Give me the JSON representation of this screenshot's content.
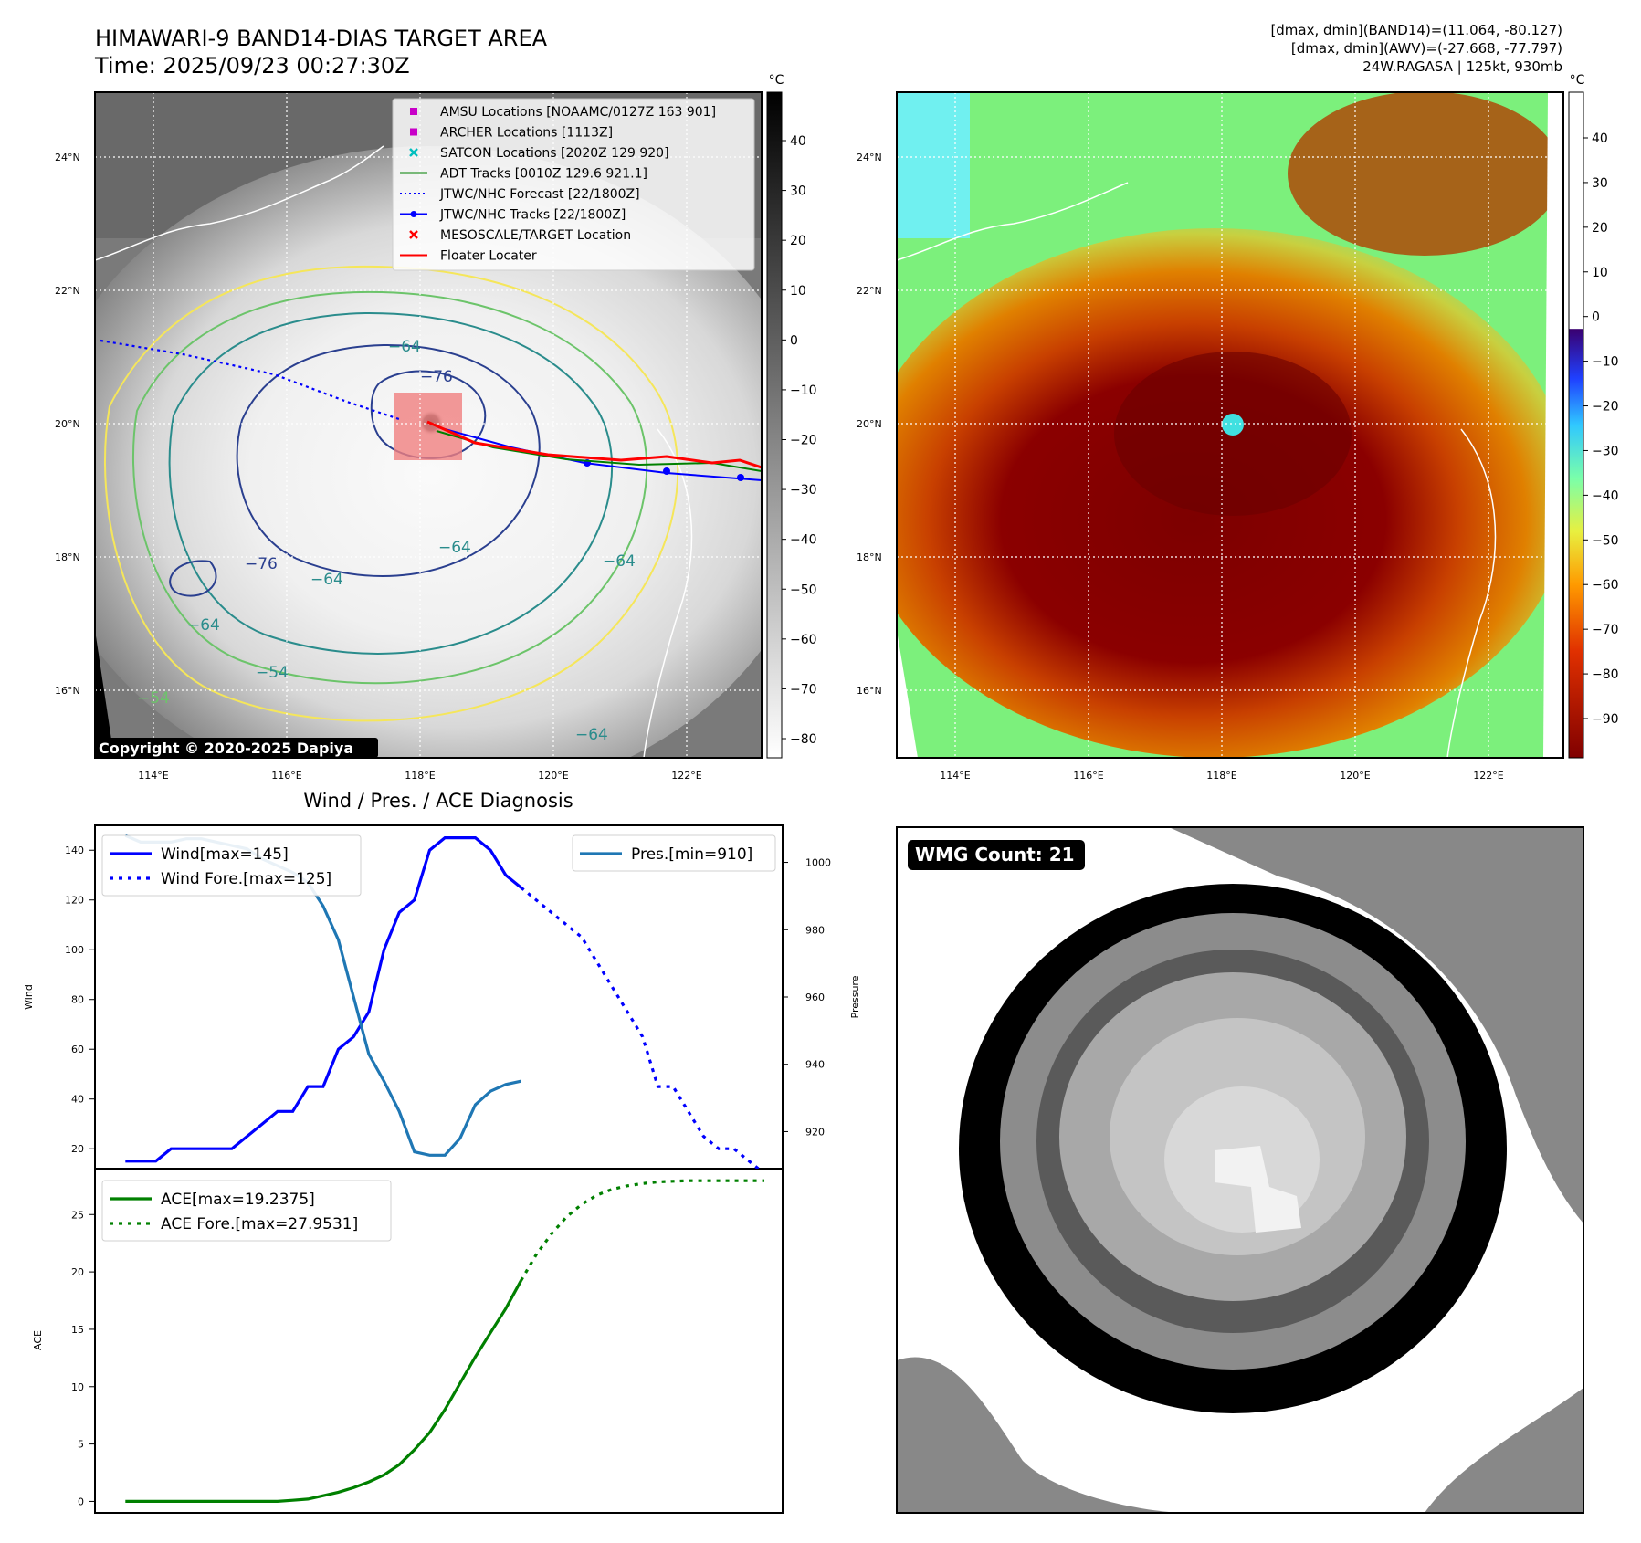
{
  "header": {
    "title_line1": "HIMAWARI-9 BAND14-DIAS TARGET AREA",
    "title_line2": "Time: 2025/09/23 00:27:30Z",
    "info_line1": "[dmax, dmin](BAND14)=(11.064, -80.127)",
    "info_line2": "[dmax, dmin](AWV)=(-27.668, -77.797)",
    "info_line3": "24W.RAGASA | 125kt, 930mb"
  },
  "colors": {
    "wind": "#0000ff",
    "pressure": "#1f77b4",
    "ace": "#008000",
    "forecast_track": "#0000ff",
    "adt_track": "#008000",
    "floater": "#ff0000",
    "amsu": "#c800c8",
    "satcon": "#00bfbf"
  },
  "panels": {
    "ir": {
      "lat_labels": [
        "24°N",
        "22°N",
        "20°N",
        "18°N",
        "16°N"
      ],
      "lon_labels": [
        "114°E",
        "116°E",
        "118°E",
        "120°E",
        "122°E"
      ],
      "contour_labels": [
        "−76",
        "−64",
        "−76",
        "−64",
        "−64",
        "−64",
        "−54",
        "−64",
        "−64",
        "−54"
      ],
      "copyright": "Copyright © 2020-2025 Dapiya",
      "legend": [
        {
          "label": "AMSU Locations [NOAAMC/0127Z 163 901]",
          "marker": "square",
          "color": "#c800c8"
        },
        {
          "label": "ARCHER Locations [1113Z]",
          "marker": "square",
          "color": "#c800c8"
        },
        {
          "label": "SATCON Locations [2020Z 129 920]",
          "marker": "x",
          "color": "#00bfbf"
        },
        {
          "label": "ADT Tracks [0010Z 129.6 921.1]",
          "marker": "line",
          "color": "#008000"
        },
        {
          "label": "JTWC/NHC Forecast [22/1800Z]",
          "marker": "dotted",
          "color": "#0000ff"
        },
        {
          "label": "JTWC/NHC Tracks [22/1800Z]",
          "marker": "line-dot",
          "color": "#0000ff"
        },
        {
          "label": "MESOSCALE/TARGET Location",
          "marker": "x",
          "color": "#ff0000"
        },
        {
          "label": "Floater Locater",
          "marker": "line",
          "color": "#ff0000"
        }
      ],
      "colorbar_unit": "°C",
      "colorbar_ticks": [
        "40",
        "30",
        "20",
        "10",
        "0",
        "−10",
        "−20",
        "−30",
        "−40",
        "−50",
        "−60",
        "−70",
        "−80"
      ]
    },
    "awv": {
      "lat_labels": [
        "24°N",
        "22°N",
        "20°N",
        "18°N",
        "16°N"
      ],
      "lon_labels": [
        "114°E",
        "116°E",
        "118°E",
        "120°E",
        "122°E"
      ],
      "colorbar_unit": "°C",
      "colorbar_ticks": [
        "40",
        "30",
        "20",
        "10",
        "0",
        "−10",
        "−20",
        "−30",
        "−40",
        "−50",
        "−60",
        "−70",
        "−80",
        "−90"
      ]
    },
    "wmg": {
      "badge": "WMG Count: 21"
    }
  },
  "chart_data": [
    {
      "type": "line",
      "title": "Wind / Pres. / ACE Diagnosis",
      "ylabel": "Wind",
      "ylabel_right": "Pressure",
      "ylim": [
        12,
        150
      ],
      "ylim_right": [
        909,
        1011
      ],
      "yticks": [
        20,
        40,
        60,
        80,
        100,
        120,
        140
      ],
      "yticks_right": [
        920,
        940,
        960,
        980,
        1000
      ],
      "series": [
        {
          "name": "Wind[max=145]",
          "axis": "left",
          "style": "solid",
          "x": [
            0,
            1,
            2,
            3,
            4,
            5,
            6,
            7,
            8,
            9,
            10,
            11,
            12,
            13,
            14,
            15,
            16,
            17,
            18,
            19,
            20,
            21,
            22,
            23,
            24,
            25,
            26
          ],
          "values": [
            15,
            15,
            15,
            20,
            20,
            20,
            20,
            20,
            25,
            30,
            35,
            35,
            45,
            45,
            60,
            65,
            75,
            100,
            115,
            120,
            140,
            145,
            145,
            145,
            140,
            130,
            125
          ]
        },
        {
          "name": "Wind Fore.[max=125]",
          "axis": "left",
          "style": "dotted",
          "x": [
            26,
            27,
            28,
            29,
            30,
            31,
            32,
            33,
            34,
            35,
            36,
            37,
            38,
            39,
            40,
            41,
            42
          ],
          "values": [
            125,
            120,
            115,
            110,
            105,
            95,
            85,
            75,
            65,
            45,
            45,
            35,
            25,
            20,
            20,
            15,
            10
          ]
        },
        {
          "name": "Pres.[min=910]",
          "axis": "right",
          "style": "solid",
          "x": [
            0,
            1,
            2,
            3,
            4,
            5,
            6,
            7,
            8,
            9,
            10,
            11,
            12,
            13,
            14,
            15,
            16,
            17,
            18,
            19,
            20,
            21,
            22,
            23,
            24,
            25,
            26
          ],
          "values": [
            1008,
            1006,
            1006,
            1006,
            1007,
            1007,
            1006,
            1005,
            1004,
            1001,
            999,
            997,
            994,
            987,
            977,
            960,
            943,
            935,
            926,
            914,
            913,
            913,
            918,
            928,
            932,
            934,
            935
          ]
        }
      ]
    },
    {
      "type": "line",
      "ylabel": "ACE",
      "ylim": [
        -1,
        29
      ],
      "yticks": [
        0,
        5,
        10,
        15,
        20,
        25
      ],
      "series": [
        {
          "name": "ACE[max=19.2375]",
          "style": "solid",
          "x": [
            0,
            1,
            2,
            3,
            4,
            5,
            6,
            7,
            8,
            9,
            10,
            11,
            12,
            13,
            14,
            15,
            16,
            17,
            18,
            19,
            20,
            21,
            22,
            23,
            24,
            25,
            26
          ],
          "values": [
            0,
            0,
            0,
            0,
            0,
            0,
            0,
            0,
            0,
            0,
            0,
            0.1,
            0.2,
            0.5,
            0.8,
            1.2,
            1.7,
            2.3,
            3.2,
            4.5,
            6.0,
            8.0,
            10.3,
            12.6,
            14.7,
            16.8,
            19.2375
          ]
        },
        {
          "name": "ACE Fore.[max=27.9531]",
          "style": "dotted",
          "x": [
            26,
            27,
            28,
            29,
            30,
            31,
            32,
            33,
            34,
            35,
            36,
            37,
            38,
            39,
            40,
            41,
            42
          ],
          "values": [
            19.2375,
            21.5,
            23.3,
            24.8,
            25.9,
            26.7,
            27.2,
            27.5,
            27.7,
            27.85,
            27.9,
            27.95,
            27.95,
            27.9531,
            27.9531,
            27.9531,
            27.9531
          ]
        }
      ]
    }
  ]
}
